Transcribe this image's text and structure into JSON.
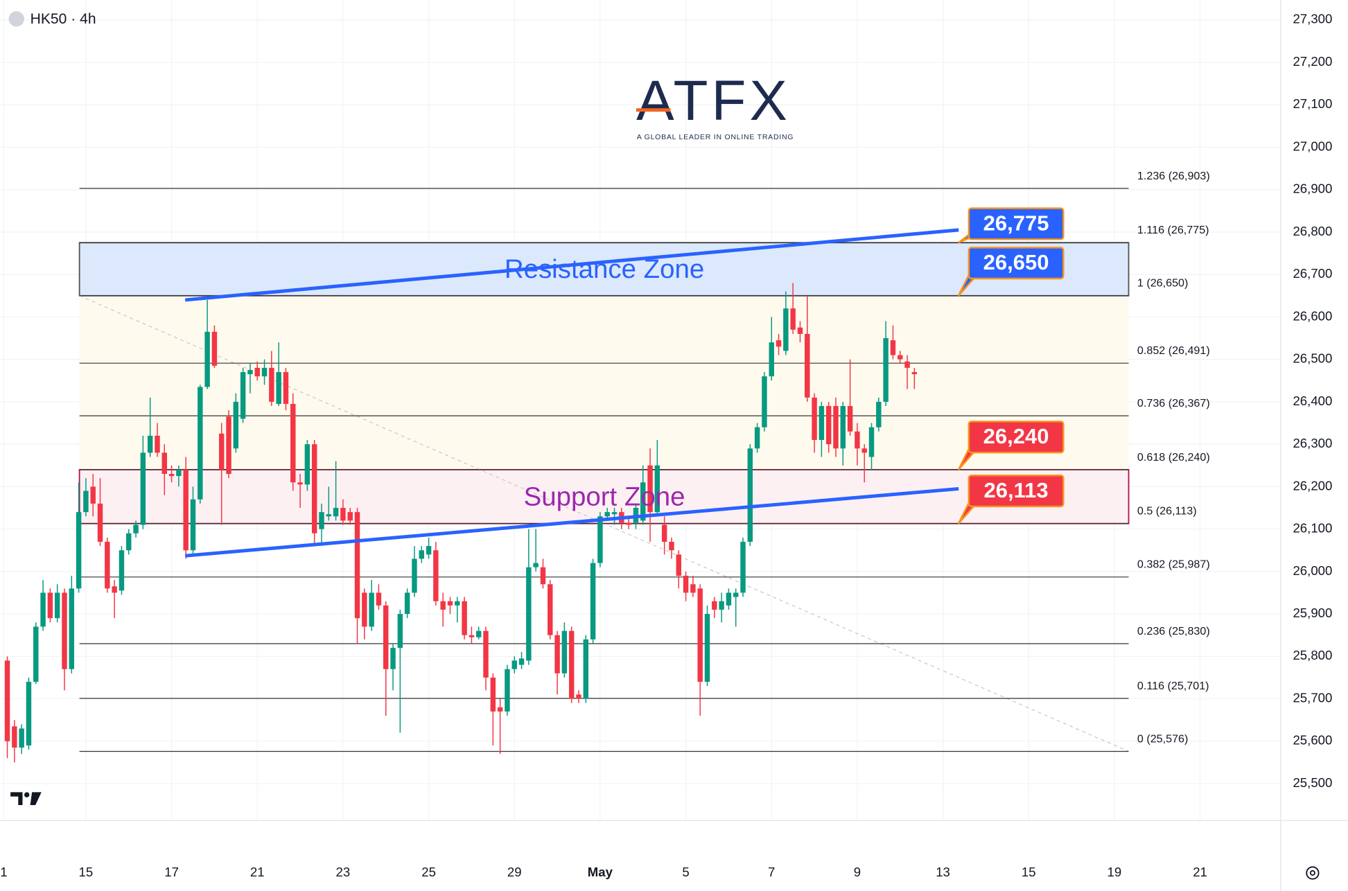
{
  "chart_data": {
    "type": "candlestick",
    "title": "HK50 · 4h",
    "logo": "ATFX",
    "tagline": "A GLOBAL LEADER IN ONLINE TRADING",
    "up_color": "#089981",
    "down_color": "#f23645",
    "ylim": [
      25413,
      27347
    ],
    "yticks": [
      {
        "value": 25500,
        "label": "25,500"
      },
      {
        "value": 25600,
        "label": "25,600"
      },
      {
        "value": 25700,
        "label": "25,700"
      },
      {
        "value": 25800,
        "label": "25,800"
      },
      {
        "value": 25900,
        "label": "25,900"
      },
      {
        "value": 26000,
        "label": "26,000"
      },
      {
        "value": 26100,
        "label": "26,100"
      },
      {
        "value": 26200,
        "label": "26,200"
      },
      {
        "value": 26300,
        "label": "26,300"
      },
      {
        "value": 26400,
        "label": "26,400"
      },
      {
        "value": 26500,
        "label": "26,500"
      },
      {
        "value": 26600,
        "label": "26,600"
      },
      {
        "value": 26700,
        "label": "26,700"
      },
      {
        "value": 26800,
        "label": "26,800"
      },
      {
        "value": 26900,
        "label": "26,900"
      },
      {
        "value": 27000,
        "label": "27,000"
      },
      {
        "value": 27100,
        "label": "27,100"
      },
      {
        "value": 27200,
        "label": "27,200"
      },
      {
        "value": 27300,
        "label": "27,300"
      }
    ],
    "xlim": [
      -1,
      178.3
    ],
    "xticks": [
      {
        "value": -0.5,
        "label": "1"
      },
      {
        "value": 11,
        "label": "15"
      },
      {
        "value": 23,
        "label": "17"
      },
      {
        "value": 35,
        "label": "21"
      },
      {
        "value": 47,
        "label": "23"
      },
      {
        "value": 59,
        "label": "25"
      },
      {
        "value": 71,
        "label": "29"
      },
      {
        "value": 83,
        "label": "May"
      },
      {
        "value": 95,
        "label": "5"
      },
      {
        "value": 107,
        "label": "7"
      },
      {
        "value": 119,
        "label": "9"
      },
      {
        "value": 131,
        "label": "13"
      },
      {
        "value": 143,
        "label": "15"
      },
      {
        "value": 155,
        "label": "19"
      },
      {
        "value": 167,
        "label": "21"
      }
    ],
    "grid": true,
    "ohlc": [
      [
        25790,
        25800,
        25560,
        25600
      ],
      [
        25635,
        25650,
        25550,
        25585
      ],
      [
        25585,
        25640,
        25570,
        25630
      ],
      [
        25590,
        25750,
        25580,
        25740
      ],
      [
        25740,
        25880,
        25735,
        25870
      ],
      [
        25870,
        25980,
        25860,
        25950
      ],
      [
        25950,
        25960,
        25880,
        25890
      ],
      [
        25890,
        25970,
        25880,
        25950
      ],
      [
        25950,
        25960,
        25720,
        25770
      ],
      [
        25770,
        25990,
        25760,
        25960
      ],
      [
        25960,
        26210,
        25950,
        26140
      ],
      [
        26140,
        26220,
        26130,
        26190
      ],
      [
        26200,
        26230,
        26130,
        26160
      ],
      [
        26160,
        26220,
        26060,
        26070
      ],
      [
        26070,
        26080,
        25950,
        25960
      ],
      [
        25965,
        25980,
        25890,
        25950
      ],
      [
        25955,
        26060,
        25945,
        26050
      ],
      [
        26050,
        26100,
        26040,
        26090
      ],
      [
        26090,
        26120,
        26080,
        26110
      ],
      [
        26110,
        26320,
        26100,
        26280
      ],
      [
        26280,
        26410,
        26270,
        26320
      ],
      [
        26320,
        26350,
        26270,
        26280
      ],
      [
        26280,
        26300,
        26180,
        26230
      ],
      [
        26230,
        26250,
        26210,
        26225
      ],
      [
        26225,
        26250,
        26200,
        26240
      ],
      [
        26240,
        26270,
        26030,
        26050
      ],
      [
        26050,
        26200,
        26040,
        26170
      ],
      [
        26170,
        26440,
        26160,
        26435
      ],
      [
        26435,
        26640,
        26430,
        26565
      ],
      [
        26565,
        26580,
        26480,
        26485
      ],
      [
        26325,
        26350,
        26110,
        26240
      ],
      [
        26365,
        26380,
        26220,
        26230
      ],
      [
        26290,
        26420,
        26280,
        26400
      ],
      [
        26360,
        26480,
        26350,
        26470
      ],
      [
        26465,
        26490,
        26420,
        26475
      ],
      [
        26480,
        26495,
        26450,
        26460
      ],
      [
        26460,
        26500,
        26440,
        26480
      ],
      [
        26480,
        26520,
        26390,
        26400
      ],
      [
        26395,
        26540,
        26390,
        26470
      ],
      [
        26470,
        26480,
        26380,
        26395
      ],
      [
        26395,
        26420,
        26190,
        26210
      ],
      [
        26210,
        26230,
        26150,
        26205
      ],
      [
        26205,
        26310,
        26190,
        26300
      ],
      [
        26300,
        26310,
        26060,
        26090
      ],
      [
        26100,
        26160,
        26060,
        26140
      ],
      [
        26130,
        26200,
        26120,
        26135
      ],
      [
        26130,
        26260,
        26120,
        26150
      ],
      [
        26150,
        26170,
        26110,
        26120
      ],
      [
        26140,
        26150,
        26110,
        26120
      ],
      [
        26140,
        26150,
        25830,
        25890
      ],
      [
        25950,
        25960,
        25840,
        25870
      ],
      [
        25870,
        25980,
        25860,
        25950
      ],
      [
        25950,
        25970,
        25910,
        25920
      ],
      [
        25920,
        25930,
        25660,
        25770
      ],
      [
        25770,
        25830,
        25720,
        25820
      ],
      [
        25820,
        25910,
        25620,
        25900
      ],
      [
        25900,
        25960,
        25890,
        25950
      ],
      [
        25950,
        26060,
        25940,
        26030
      ],
      [
        26030,
        26060,
        26020,
        26050
      ],
      [
        26040,
        26080,
        26030,
        26060
      ],
      [
        26050,
        26070,
        25920,
        25930
      ],
      [
        25930,
        25950,
        25870,
        25910
      ],
      [
        25930,
        25940,
        25900,
        25920
      ],
      [
        25920,
        25940,
        25880,
        25930
      ],
      [
        25930,
        25940,
        25840,
        25850
      ],
      [
        25850,
        25870,
        25830,
        25845
      ],
      [
        25845,
        25870,
        25840,
        25860
      ],
      [
        25860,
        25870,
        25720,
        25750
      ],
      [
        25750,
        25760,
        25590,
        25670
      ],
      [
        25680,
        25700,
        25570,
        25670
      ],
      [
        25670,
        25780,
        25660,
        25770
      ],
      [
        25770,
        25800,
        25760,
        25790
      ],
      [
        25780,
        25810,
        25770,
        25795
      ],
      [
        25790,
        26100,
        25780,
        26010
      ],
      [
        26010,
        26100,
        26000,
        26020
      ],
      [
        26010,
        26030,
        25960,
        25970
      ],
      [
        25970,
        25980,
        25840,
        25850
      ],
      [
        25850,
        25860,
        25710,
        25760
      ],
      [
        25760,
        25880,
        25750,
        25860
      ],
      [
        25860,
        25870,
        25690,
        25700
      ],
      [
        25710,
        25720,
        25690,
        25700
      ],
      [
        25700,
        25850,
        25690,
        25840
      ],
      [
        25840,
        26030,
        25830,
        26020
      ],
      [
        26020,
        26140,
        26010,
        26130
      ],
      [
        26130,
        26150,
        26120,
        26140
      ],
      [
        26135,
        26150,
        26110,
        26140
      ],
      [
        26140,
        26150,
        26100,
        26115
      ],
      [
        26115,
        26130,
        26100,
        26110
      ],
      [
        26115,
        26160,
        26100,
        26150
      ],
      [
        26120,
        26250,
        26110,
        26210
      ],
      [
        26250,
        26290,
        26070,
        26140
      ],
      [
        26140,
        26310,
        26130,
        26250
      ],
      [
        26110,
        26130,
        26040,
        26070
      ],
      [
        26070,
        26080,
        26030,
        26050
      ],
      [
        26040,
        26050,
        25960,
        25990
      ],
      [
        25990,
        26000,
        25930,
        25950
      ],
      [
        25970,
        25990,
        25940,
        25950
      ],
      [
        25960,
        25970,
        25660,
        25740
      ],
      [
        25740,
        25920,
        25730,
        25900
      ],
      [
        25930,
        25940,
        25890,
        25910
      ],
      [
        25910,
        25950,
        25880,
        25930
      ],
      [
        25920,
        25960,
        25910,
        25950
      ],
      [
        25940,
        25960,
        25870,
        25950
      ],
      [
        25950,
        26080,
        25940,
        26070
      ],
      [
        26070,
        26300,
        26060,
        26290
      ],
      [
        26290,
        26350,
        26280,
        26340
      ],
      [
        26340,
        26470,
        26330,
        26460
      ],
      [
        26460,
        26600,
        26450,
        26540
      ],
      [
        26545,
        26560,
        26510,
        26530
      ],
      [
        26520,
        26660,
        26510,
        26620
      ],
      [
        26620,
        26680,
        26560,
        26570
      ],
      [
        26575,
        26590,
        26540,
        26560
      ],
      [
        26560,
        26650,
        26400,
        26410
      ],
      [
        26410,
        26420,
        26280,
        26310
      ],
      [
        26310,
        26400,
        26270,
        26390
      ],
      [
        26390,
        26400,
        26280,
        26300
      ],
      [
        26390,
        26410,
        26270,
        26290
      ],
      [
        26290,
        26400,
        26250,
        26390
      ],
      [
        26390,
        26500,
        26320,
        26330
      ],
      [
        26330,
        26350,
        26250,
        26290
      ],
      [
        26290,
        26300,
        26210,
        26280
      ],
      [
        26270,
        26350,
        26240,
        26340
      ],
      [
        26340,
        26410,
        26330,
        26400
      ],
      [
        26400,
        26590,
        26390,
        26550
      ],
      [
        26545,
        26580,
        26500,
        26510
      ],
      [
        26510,
        26520,
        26490,
        26500
      ],
      [
        26495,
        26510,
        26430,
        26480
      ],
      [
        26470,
        26480,
        26430,
        26465
      ]
    ],
    "fib_x": [
      10.1,
      157
    ],
    "fib_levels": [
      {
        "value": 26903,
        "label": "1.236 (26,903)"
      },
      {
        "value": 26775,
        "label": "1.116 (26,775)"
      },
      {
        "value": 26650,
        "label": "1 (26,650)"
      },
      {
        "value": 26491,
        "label": "0.852 (26,491)"
      },
      {
        "value": 26367,
        "label": "0.736 (26,367)"
      },
      {
        "value": 26240,
        "label": "0.618 (26,240)"
      },
      {
        "value": 26113,
        "label": "0.5 (26,113)"
      },
      {
        "value": 25987,
        "label": "0.382 (25,987)"
      },
      {
        "value": 25830,
        "label": "0.236 (25,830)"
      },
      {
        "value": 25701,
        "label": "0.116 (25,701)"
      },
      {
        "value": 25576,
        "label": "0 (25,576)"
      }
    ],
    "fib_line": {
      "x": [
        10.1,
        157
      ],
      "y": [
        26650,
        25576
      ]
    },
    "zones": [
      {
        "name": "Resistance Zone",
        "range": [
          26650,
          26775
        ],
        "fill": "#dce8fb",
        "stroke": "#555555",
        "text_color": "#2962ff"
      },
      {
        "name": "Support Zone",
        "range": [
          26113,
          26240
        ],
        "fill": "#fdf0f3",
        "stroke": "#b0164a",
        "text_color": "#9c27b0"
      }
    ],
    "trendlines": [
      {
        "x": [
          24.9,
          133.2
        ],
        "y": [
          26640,
          26805
        ],
        "color": "#2962ff"
      },
      {
        "x": [
          24.9,
          133.2
        ],
        "y": [
          26037,
          26195
        ],
        "color": "#2962ff"
      }
    ],
    "callouts": [
      {
        "value": 26775,
        "value_label": "26,775",
        "color": "#2962ff"
      },
      {
        "value": 26650,
        "value_label": "26,650",
        "color": "#2962ff"
      },
      {
        "value": 26240,
        "value_label": "26,240",
        "color": "#f23645"
      },
      {
        "value": 26113,
        "value_label": "26,113",
        "color": "#f23645"
      }
    ]
  }
}
